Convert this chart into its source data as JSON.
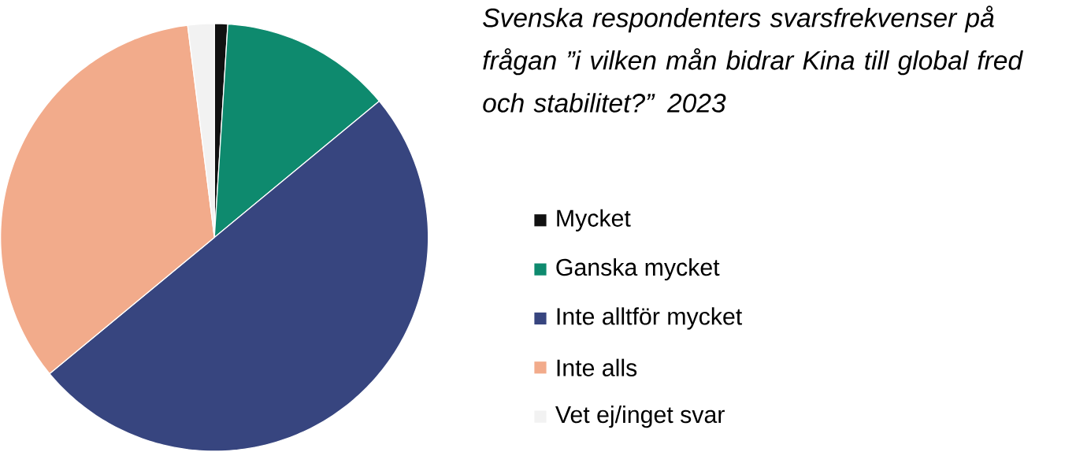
{
  "chart_data": {
    "type": "pie",
    "title": "Svenska respondenters svarsfrekvenser på frågan ”i vilken mån bidrar Kina till global fred och stabilitet?” 2023",
    "categories": [
      "Mycket",
      "Ganska mycket",
      "Inte alltför mycket",
      "Inte alls",
      "Vet ej/inget svar"
    ],
    "values": [
      1,
      13,
      50,
      34,
      2
    ],
    "colors": [
      "#111111",
      "#0e8a6e",
      "#37457f",
      "#f2ab8b",
      "#f2f2f2"
    ],
    "legend": "right"
  }
}
